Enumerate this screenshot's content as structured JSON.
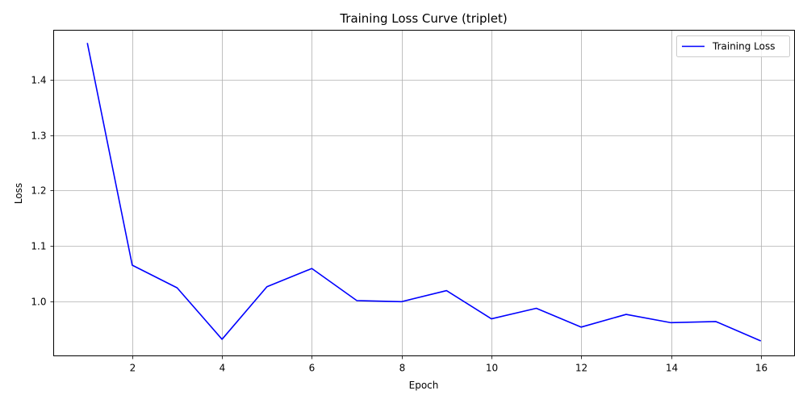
{
  "chart_data": {
    "type": "line",
    "title": "Training Loss Curve (triplet)",
    "xlabel": "Epoch",
    "ylabel": "Loss",
    "xlim": [
      0.25,
      16.75
    ],
    "ylim": [
      0.901,
      1.49
    ],
    "xticks": [
      2,
      4,
      6,
      8,
      10,
      12,
      14,
      16
    ],
    "yticks": [
      1.0,
      1.1,
      1.2,
      1.3,
      1.4
    ],
    "ytick_labels": [
      "1.0",
      "1.1",
      "1.2",
      "1.3",
      "1.4"
    ],
    "grid": true,
    "legend_position": "top-right",
    "series": [
      {
        "name": "Training Loss",
        "color": "#0000ff",
        "x": [
          1,
          2,
          3,
          4,
          5,
          6,
          7,
          8,
          9,
          10,
          11,
          12,
          13,
          14,
          15,
          16
        ],
        "y": [
          1.467,
          1.065,
          1.024,
          0.931,
          1.026,
          1.059,
          1.001,
          0.999,
          1.019,
          0.968,
          0.987,
          0.953,
          0.976,
          0.961,
          0.963,
          0.928
        ]
      }
    ]
  }
}
